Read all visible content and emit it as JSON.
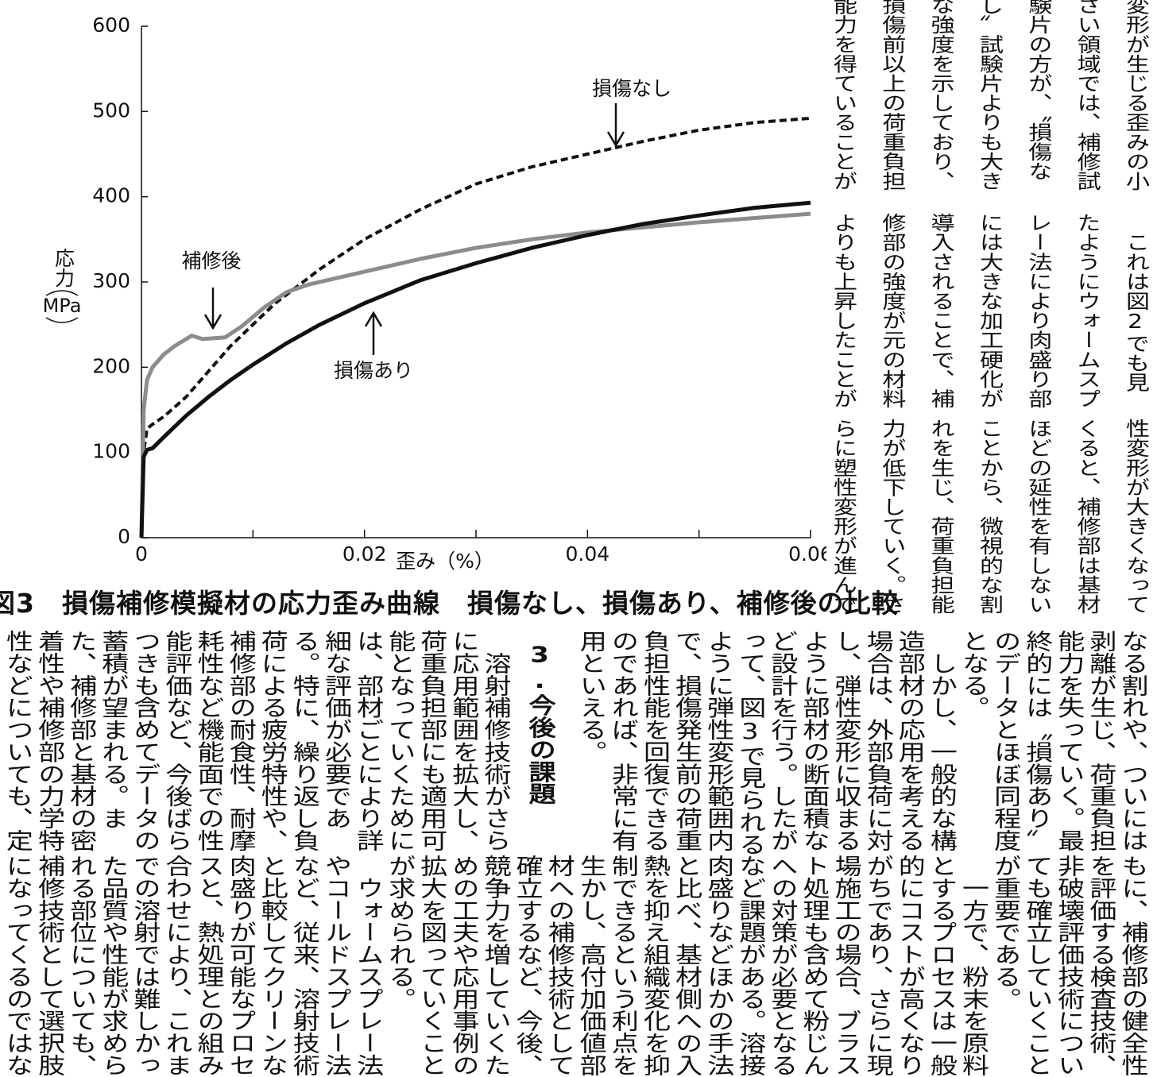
{
  "chart_data": {
    "type": "line",
    "xlabel": "歪み（%）",
    "ylabel": "応力",
    "yunit": "MPa",
    "xlim": [
      0,
      0.06
    ],
    "xticks": [
      0,
      0.02,
      0.04,
      0.06
    ],
    "xminor_ticks": [
      0.01,
      0.03,
      0.05
    ],
    "ylim": [
      0,
      600
    ],
    "yticks": [
      0,
      100,
      200,
      300,
      400,
      500,
      600
    ],
    "series": [
      {
        "name": "損傷なし",
        "color": "#111111",
        "dash": true,
        "x": [
          0,
          0.0002,
          0.0005,
          0.001,
          0.002,
          0.004,
          0.006,
          0.008,
          0.01,
          0.012,
          0.014,
          0.016,
          0.02,
          0.025,
          0.03,
          0.035,
          0.04,
          0.045,
          0.05,
          0.055,
          0.06
        ],
        "values": [
          0,
          100,
          128,
          133,
          142,
          165,
          195,
          225,
          250,
          275,
          295,
          315,
          350,
          385,
          415,
          435,
          450,
          465,
          478,
          487,
          492
        ]
      },
      {
        "name": "補修後",
        "color": "#8c8c8c",
        "dash": false,
        "x": [
          0,
          0.0002,
          0.0005,
          0.001,
          0.002,
          0.003,
          0.0045,
          0.0055,
          0.0075,
          0.009,
          0.011,
          0.013,
          0.015,
          0.02,
          0.025,
          0.03,
          0.035,
          0.04,
          0.045,
          0.05,
          0.055,
          0.06
        ],
        "values": [
          0,
          150,
          185,
          200,
          215,
          225,
          237,
          233,
          235,
          248,
          270,
          288,
          297,
          312,
          327,
          340,
          350,
          358,
          364,
          370,
          375,
          380
        ]
      },
      {
        "name": "損傷あり",
        "color": "#111111",
        "dash": false,
        "x": [
          0,
          0.0002,
          0.0005,
          0.001,
          0.002,
          0.004,
          0.006,
          0.008,
          0.01,
          0.013,
          0.016,
          0.02,
          0.025,
          0.03,
          0.035,
          0.04,
          0.045,
          0.05,
          0.055,
          0.06
        ],
        "values": [
          0,
          95,
          103,
          105,
          118,
          143,
          165,
          185,
          203,
          228,
          250,
          275,
          302,
          322,
          340,
          355,
          368,
          378,
          387,
          393
        ]
      }
    ]
  },
  "caption": "図3　損傷補修模擬材の応力歪み曲線　損傷なし、損傷あり、補修後の比較",
  "text": {
    "bands": [
      {
        "columns": [
          "変形が生じる歪みの小",
          "さい領域では、補修試",
          "験片の方が、〝損傷な",
          "し〟試験片よりも大き",
          "な強度を示しており、",
          "損傷前以上の荷重負担",
          "能力を得ていることが"
        ]
      },
      {
        "columns": [
          "　これは図2でも見",
          "たようにウォームスプ",
          "レー法により肉盛り部",
          "には大きな加工硬化が",
          "導入されることで、補",
          "修部の強度が元の材料",
          "よりも上昇したことが"
        ]
      },
      {
        "columns": [
          "性変形が大きくなって",
          "くると、補修部は基材",
          "ほどの延性を有しない",
          "ことから、微視的な割",
          "れを生じ、荷重負担能",
          "力が低下していく。さ",
          "らに塑性変形が進んで"
        ]
      },
      {
        "columns": [
          "なる割れや、ついには",
          "剥離が生じ、荷重負担",
          "能力を失っていく。最",
          "終的には〝損傷あり〟",
          "のデータとほぼ同程度",
          "となる。",
          "　しかし、一般的な構",
          "造部材の応用を考える",
          "場合は、外部負荷に対",
          "し、弾性変形に収まる",
          "ように部材の断面積な",
          "ど設計を行う。したが",
          "って、図3で見られる",
          "ように弾性変形範囲内",
          "で、損傷発生前の荷重",
          "負担性能を回復できる",
          "のであれば、非常に有",
          "用といえる。"
        ],
        "heading": "3.今後の課題",
        "more_columns": [
          "　溶射補修技術がさら",
          "に応用範囲を拡大し、",
          "荷重負担部にも適用可",
          "能となっていくために",
          "は、部材ごとにより詳",
          "細な評価が必要であ",
          "る。特に、繰り返し負",
          "荷による疲労特性や、",
          "補修部の耐食性、耐摩",
          "耗性など機能面での性",
          "能評価など、今後ばら",
          "つきも含めてデータの",
          "蓄積が望まれる。ま",
          "た、補修部と基材の密",
          "着性や補修部の力学特",
          "性などについても、定"
        ]
      },
      {
        "columns": [
          "もに、補修部の健全性",
          "を評価する検査技術、",
          "非破壊評価技術につい",
          "ても確立していくこと",
          "が重要である。",
          "　一方で、粉末を原料",
          "とするプロセスは一般",
          "的にコストが高くなり",
          "がちであり、さらに現",
          "場施工の場合、ブラス",
          "ト処理も含めて粉じん",
          "への対策が必要となる",
          "など課題がある。溶接",
          "肉盛りなどほかの手法",
          "と比べ、基材側への入",
          "熱を抑え組織変化を抑",
          "制できるという利点を",
          "生かし、高付加価値部",
          "材への補修技術として",
          "確立するなど、今後、",
          "競争力を増していくた",
          "めの工夫や応用事例の",
          "拡大を図っていくこと",
          "が求められる。",
          "　ウォームスプレー法",
          "やコールドスプレー法",
          "など、従来、溶射技術",
          "と比較してクリーンな",
          "肉盛りが可能なプロセ",
          "スと、熱処理との組み",
          "合わせにより、これま",
          "での溶射では難しかっ",
          "た品質や性能が求めら",
          "れる部位についても、",
          "補修技術として選択肢",
          "になってくるのではな"
        ]
      }
    ]
  }
}
